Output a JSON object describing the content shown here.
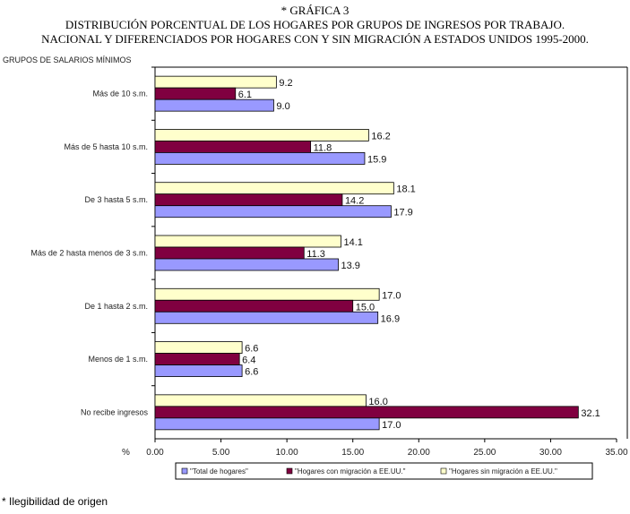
{
  "title_lines": [
    "* GRÁFICA 3",
    "DISTRIBUCIÓN PORCENTUAL DE LOS HOGARES POR GRUPOS DE INGRESOS POR TRABAJO.",
    "NACIONAL Y DIFERENCIADOS POR HOGARES CON Y SIN MIGRACIÓN A ESTADOS UNIDOS 1995-2000."
  ],
  "footnote": "* Ilegibilidad de origen",
  "chart_data": {
    "type": "bar",
    "orientation": "horizontal",
    "ylabel": "GRUPOS DE SALARIOS MÍNIMOS",
    "xlabel": "%",
    "xlim": [
      0,
      35
    ],
    "xticks": [
      "0.00",
      "5.00",
      "10.00",
      "15.00",
      "20.00",
      "25.00",
      "30.00",
      "35.00"
    ],
    "categories": [
      "Más de 10 s.m.",
      "Más de 5 hasta 10 s.m.",
      "De 3 hasta 5 s.m.",
      "Más de 2 hasta menos de 3 s.m.",
      "De 1 hasta 2 s.m.",
      "Menos de 1 s.m.",
      "No recibe ingresos"
    ],
    "series": [
      {
        "name": "\"Hogares sin migración a EE.UU.\"",
        "color": "#ffffcc",
        "values": [
          9.2,
          16.2,
          18.1,
          14.1,
          17.0,
          6.6,
          16.0
        ]
      },
      {
        "name": "\"Hogares con migración a EE.UU.\"",
        "color": "#800040",
        "values": [
          6.1,
          11.8,
          14.2,
          11.3,
          15.0,
          6.4,
          32.1
        ]
      },
      {
        "name": "\"Total de hogares\"",
        "color": "#9999ff",
        "values": [
          9.0,
          15.9,
          17.9,
          13.9,
          16.9,
          6.6,
          17.0
        ]
      }
    ],
    "legend_order": [
      2,
      1,
      0
    ],
    "legend_position": "bottom"
  }
}
